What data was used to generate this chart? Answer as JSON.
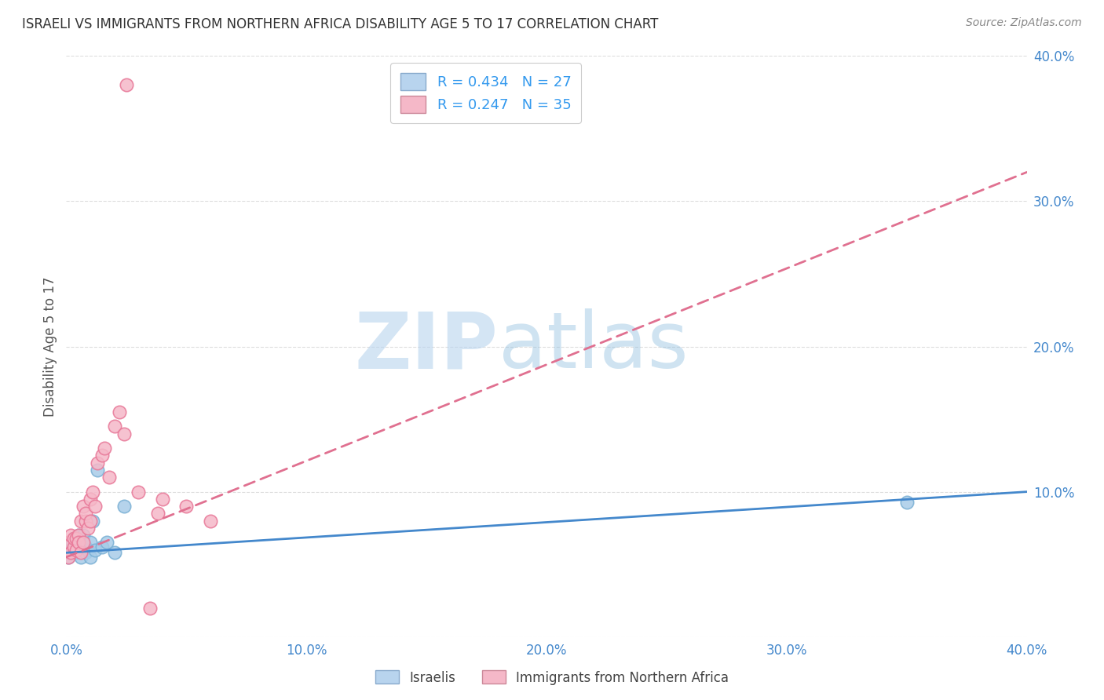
{
  "title": "ISRAELI VS IMMIGRANTS FROM NORTHERN AFRICA DISABILITY AGE 5 TO 17 CORRELATION CHART",
  "source": "Source: ZipAtlas.com",
  "ylabel": "Disability Age 5 to 17",
  "xlabel": "",
  "watermark_zip": "ZIP",
  "watermark_atlas": "atlas",
  "xlim": [
    0.0,
    0.4
  ],
  "ylim": [
    0.0,
    0.4
  ],
  "xticks": [
    0.0,
    0.1,
    0.2,
    0.3,
    0.4
  ],
  "yticks": [
    0.0,
    0.1,
    0.2,
    0.3,
    0.4
  ],
  "legend_r_blue": "R = 0.434",
  "legend_n_blue": "N = 27",
  "legend_r_pink": "R = 0.247",
  "legend_n_pink": "N = 35",
  "legend_label_blue": "Israelis",
  "legend_label_pink": "Immigrants from Northern Africa",
  "blue_scatter_color": "#a8cce8",
  "blue_edge_color": "#7ab0d4",
  "pink_scatter_color": "#f5b8c8",
  "pink_edge_color": "#e87898",
  "trend_blue_color": "#4488cc",
  "trend_pink_color": "#e07090",
  "title_color": "#333333",
  "right_axis_color": "#4488cc",
  "grid_color": "#dddddd",
  "israelis_x": [
    0.001,
    0.001,
    0.002,
    0.002,
    0.003,
    0.003,
    0.004,
    0.004,
    0.005,
    0.005,
    0.006,
    0.006,
    0.007,
    0.007,
    0.008,
    0.008,
    0.009,
    0.01,
    0.01,
    0.011,
    0.012,
    0.013,
    0.015,
    0.017,
    0.02,
    0.024,
    0.35
  ],
  "israelis_y": [
    0.055,
    0.06,
    0.058,
    0.065,
    0.062,
    0.068,
    0.058,
    0.063,
    0.07,
    0.06,
    0.065,
    0.055,
    0.06,
    0.07,
    0.058,
    0.062,
    0.06,
    0.065,
    0.055,
    0.08,
    0.06,
    0.115,
    0.062,
    0.065,
    0.058,
    0.09,
    0.093
  ],
  "immigrants_x": [
    0.001,
    0.001,
    0.002,
    0.002,
    0.003,
    0.003,
    0.004,
    0.004,
    0.005,
    0.005,
    0.006,
    0.006,
    0.007,
    0.007,
    0.008,
    0.008,
    0.009,
    0.01,
    0.01,
    0.011,
    0.012,
    0.013,
    0.015,
    0.016,
    0.018,
    0.02,
    0.022,
    0.024,
    0.025,
    0.03,
    0.035,
    0.05,
    0.06,
    0.04,
    0.038
  ],
  "immigrants_y": [
    0.055,
    0.065,
    0.058,
    0.07,
    0.062,
    0.068,
    0.06,
    0.068,
    0.07,
    0.065,
    0.058,
    0.08,
    0.065,
    0.09,
    0.08,
    0.085,
    0.075,
    0.08,
    0.095,
    0.1,
    0.09,
    0.12,
    0.125,
    0.13,
    0.11,
    0.145,
    0.155,
    0.14,
    0.38,
    0.1,
    0.02,
    0.09,
    0.08,
    0.095,
    0.085
  ],
  "trend_blue_x0": 0.0,
  "trend_blue_y0": 0.058,
  "trend_blue_x1": 0.4,
  "trend_blue_y1": 0.1,
  "trend_pink_x0": 0.0,
  "trend_pink_y0": 0.055,
  "trend_pink_x1": 0.4,
  "trend_pink_y1": 0.32
}
